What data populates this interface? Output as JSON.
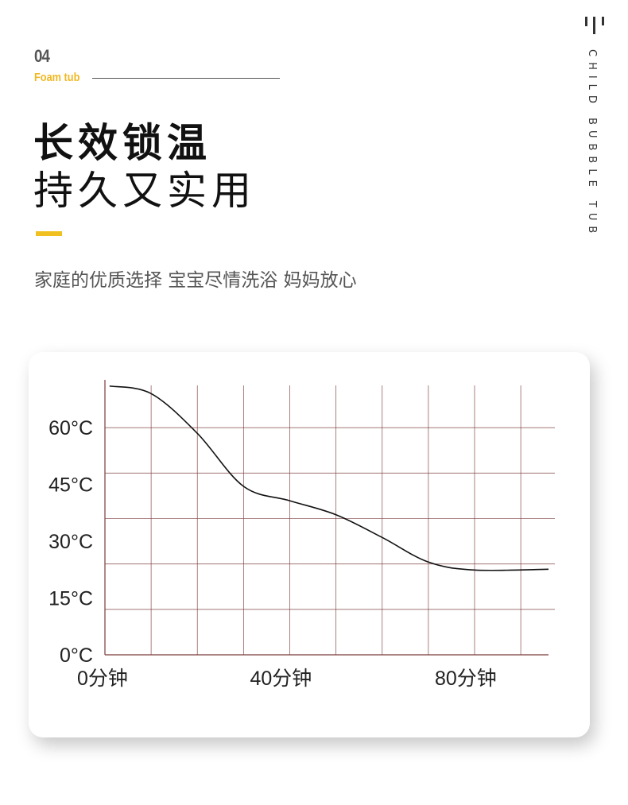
{
  "header": {
    "number": "04",
    "subtitle": "Foam tub",
    "title_line1": "长效锁温",
    "title_line2": "持久又实用",
    "description": "家庭的优质选择 宝宝尽情洗浴 妈妈放心",
    "side_text": "CHILD BUBBLE TUB"
  },
  "colors": {
    "accent": "#f0c020",
    "grid": "#7a3b3b",
    "curve": "#111111"
  },
  "chart_data": {
    "type": "line",
    "title": "",
    "xlabel": "",
    "ylabel": "",
    "xlim": [
      0,
      96
    ],
    "ylim": [
      0,
      72
    ],
    "grid": true,
    "y_ticks": [
      {
        "value": 0,
        "label": "0°C"
      },
      {
        "value": 15,
        "label": "15°C"
      },
      {
        "value": 30,
        "label": "30°C"
      },
      {
        "value": 45,
        "label": "45°C"
      },
      {
        "value": 60,
        "label": "60°C"
      }
    ],
    "x_ticks": [
      {
        "value": 0,
        "label": "0分钟"
      },
      {
        "value": 40,
        "label": "40分钟"
      },
      {
        "value": 80,
        "label": "80分钟"
      }
    ],
    "series": [
      {
        "x": [
          1,
          10,
          20,
          30,
          40,
          50,
          60,
          70,
          80,
          96
        ],
        "y": [
          71,
          69,
          58.5,
          44.5,
          40.7,
          37,
          31,
          24.5,
          22.4,
          22.6
        ]
      }
    ]
  }
}
